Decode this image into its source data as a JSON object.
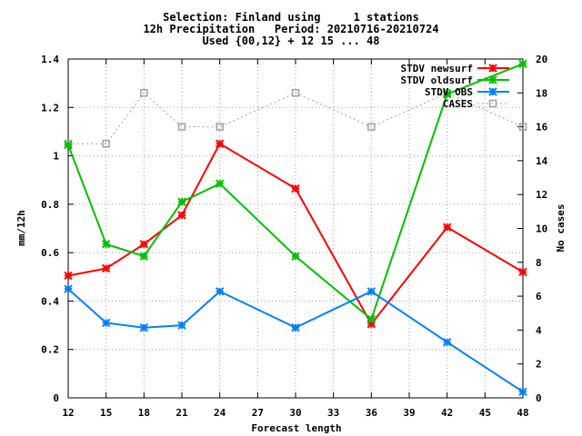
{
  "chart_data": {
    "type": "line",
    "title": [
      "Selection: Finland using     1 stations",
      "12h Precipitation   Period: 20210716-20210724",
      "Used {00,12} + 12 15 ... 48"
    ],
    "xlabel": "Forecast length",
    "ylabel": "mm/12h",
    "y2label": "No cases",
    "xlim": [
      12,
      48
    ],
    "ylim": [
      0,
      1.4
    ],
    "y2lim": [
      0,
      20
    ],
    "xticks": [
      12,
      15,
      18,
      21,
      24,
      27,
      30,
      33,
      36,
      39,
      42,
      45,
      48
    ],
    "yticks": [
      "0",
      "0.2",
      "0.4",
      "0.6",
      "0.8",
      "1",
      "1.2",
      "1.4"
    ],
    "y2ticks": [
      0,
      2,
      4,
      6,
      8,
      10,
      12,
      14,
      16,
      18,
      20
    ],
    "grid": true,
    "legend_position": "top-right",
    "series": [
      {
        "name": "STDV newsurf",
        "axis": "y",
        "color": "#ff0000",
        "marker": "x",
        "x": [
          12,
          15,
          18,
          21,
          24,
          30,
          36,
          42,
          48
        ],
        "values": [
          0.505,
          0.535,
          0.635,
          0.755,
          1.05,
          0.865,
          0.305,
          0.705,
          0.52
        ]
      },
      {
        "name": "STDV oldsurf",
        "axis": "y",
        "color": "#00c000",
        "marker": "x",
        "x": [
          12,
          15,
          18,
          21,
          24,
          30,
          36,
          42,
          48
        ],
        "values": [
          1.045,
          0.635,
          0.585,
          0.81,
          0.885,
          0.585,
          0.325,
          1.255,
          1.38
        ]
      },
      {
        "name": "STDV OBS",
        "axis": "y",
        "color": "#0080ff",
        "marker": "x",
        "x": [
          12,
          15,
          18,
          21,
          24,
          30,
          36,
          42,
          48
        ],
        "values": [
          0.45,
          0.31,
          0.29,
          0.3,
          0.44,
          0.29,
          0.44,
          0.23,
          0.025
        ]
      },
      {
        "name": "CASES",
        "axis": "y2",
        "color": "#a0a0a0",
        "marker": "square",
        "dashed": true,
        "x": [
          12,
          15,
          18,
          21,
          24,
          30,
          36,
          42,
          48
        ],
        "values": [
          15,
          15,
          18,
          16,
          16,
          18,
          16,
          18,
          16
        ]
      }
    ]
  }
}
